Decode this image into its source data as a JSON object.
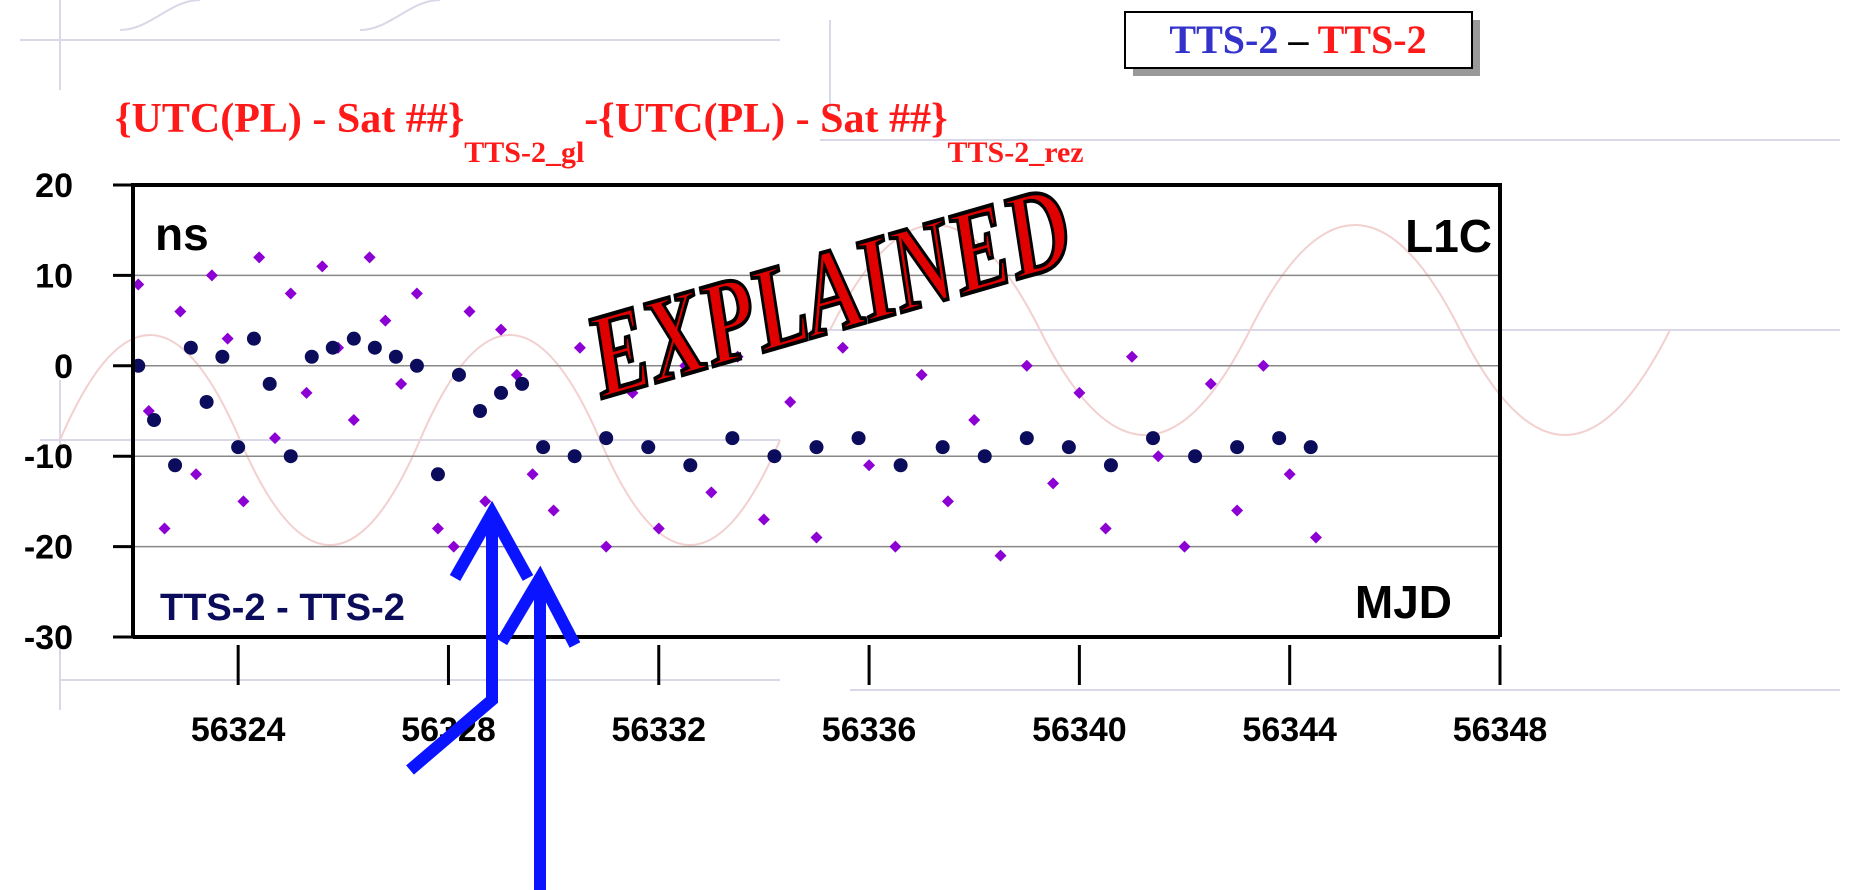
{
  "chart_data": {
    "type": "scatter",
    "title": {
      "main1": "{UTC(PL) - Sat ##}",
      "sub1": "TTS-2_gl",
      "main2": "-{UTC(PL) - Sat ##}",
      "sub2": "TTS-2_rez"
    },
    "badge": [
      "TTS-2",
      "–",
      "TTS-2"
    ],
    "stamp": "EXPLAINED",
    "y_unit": "ns",
    "signal": "L1C",
    "x_label": "MJD",
    "xlim": [
      56322,
      56348
    ],
    "xticks": [
      56324,
      56328,
      56332,
      56336,
      56340,
      56344,
      56348
    ],
    "ylim": [
      -30,
      20
    ],
    "yticks": [
      -30,
      -20,
      -10,
      0,
      10,
      20
    ],
    "grid": true,
    "series": [
      {
        "color": "#8c00d4",
        "x": [
          56322.1,
          56322.3,
          56322.6,
          56322.9,
          56323.2,
          56323.5,
          56323.8,
          56324.1,
          56324.4,
          56324.7,
          56325.0,
          56325.3,
          56325.6,
          56325.9,
          56326.2,
          56326.5,
          56326.8,
          56327.1,
          56327.4,
          56327.8,
          56328.1,
          56328.4,
          56328.7,
          56329.0,
          56329.3,
          56329.6,
          56330.0,
          56330.5,
          56331.0,
          56331.5,
          56332.0,
          56332.5,
          56333.0,
          56333.5,
          56334.0,
          56334.5,
          56335.0,
          56335.5,
          56336.0,
          56336.5,
          56337.0,
          56337.5,
          56338.0,
          56338.5,
          56339.0,
          56339.5,
          56340.0,
          56340.5,
          56341.0,
          56341.5,
          56342.0,
          56342.5,
          56343.0,
          56343.5,
          56344.0,
          56344.5
        ],
        "values": [
          9,
          -5,
          -18,
          6,
          -12,
          10,
          3,
          -15,
          12,
          -8,
          8,
          -3,
          11,
          2,
          -6,
          12,
          5,
          -2,
          8,
          -18,
          -20,
          6,
          -15,
          4,
          -1,
          -12,
          -16,
          2,
          -20,
          -3,
          -18,
          0,
          -14,
          1,
          -17,
          -4,
          -19,
          2,
          -11,
          -20,
          -1,
          -15,
          -6,
          -21,
          0,
          -13,
          -3,
          -18,
          1,
          -10,
          -20,
          -2,
          -16,
          0,
          -12,
          -19
        ]
      },
      {
        "name": "TTS-2 - TTS-2",
        "color": "#0c0c5c",
        "x": [
          56322.1,
          56322.4,
          56322.8,
          56323.1,
          56323.4,
          56323.7,
          56324.0,
          56324.3,
          56324.6,
          56325.0,
          56325.4,
          56325.8,
          56326.2,
          56326.6,
          56327.0,
          56327.4,
          56327.8,
          56328.2,
          56328.6,
          56329.0,
          56329.4,
          56329.8,
          56330.4,
          56331.0,
          56331.8,
          56332.6,
          56333.4,
          56334.2,
          56335.0,
          56335.8,
          56336.6,
          56337.4,
          56338.2,
          56339.0,
          56339.8,
          56340.6,
          56341.4,
          56342.2,
          56343.0,
          56343.8,
          56344.4
        ],
        "values": [
          0,
          -6,
          -11,
          2,
          -4,
          1,
          -9,
          3,
          -2,
          -10,
          1,
          2,
          3,
          2,
          1,
          0,
          -12,
          -1,
          -5,
          -3,
          -2,
          -9,
          -10,
          -8,
          -9,
          -11,
          -8,
          -10,
          -9,
          -8,
          -11,
          -9,
          -10,
          -8,
          -9,
          -11,
          -8,
          -10,
          -9,
          -8,
          -9
        ]
      }
    ]
  }
}
